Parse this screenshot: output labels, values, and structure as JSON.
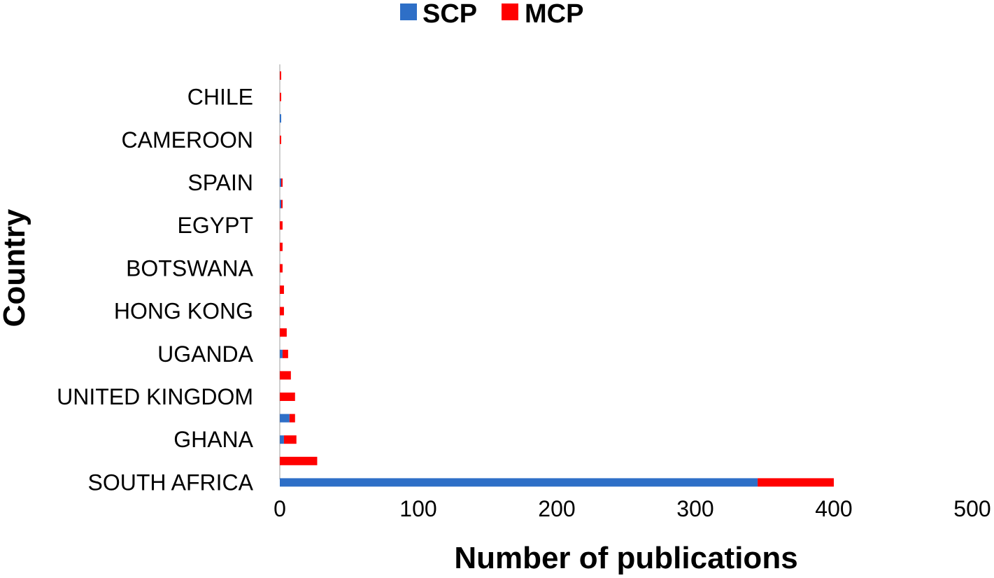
{
  "chart_data": {
    "type": "bar",
    "orientation": "horizontal",
    "stacked": true,
    "title": "",
    "xlabel": "Number of publications",
    "ylabel": "Country",
    "xlim": [
      0,
      500
    ],
    "xticks": [
      0,
      100,
      200,
      300,
      400,
      500
    ],
    "grid": false,
    "legend_position": "top-center",
    "categories": [
      "SOUTH AFRICA",
      "",
      "GHANA",
      "",
      "UNITED KINGDOM",
      "",
      "UGANDA",
      "",
      "HONG KONG",
      "",
      "BOTSWANA",
      "",
      "EGYPT",
      "",
      "SPAIN",
      "",
      "CAMEROON",
      "",
      "CHILE",
      ""
    ],
    "series": [
      {
        "name": "SCP",
        "color": "#2E6FC7",
        "values": [
          345,
          0,
          3,
          7,
          0,
          0,
          2,
          0,
          0,
          0,
          0,
          0,
          0,
          1,
          1,
          0,
          0,
          1,
          0,
          0
        ]
      },
      {
        "name": "MCP",
        "color": "#FF0000",
        "values": [
          55,
          27,
          9,
          4,
          11,
          8,
          4,
          5,
          3,
          3,
          2,
          2,
          2,
          1,
          1,
          0,
          1,
          0,
          1,
          1
        ]
      }
    ]
  }
}
